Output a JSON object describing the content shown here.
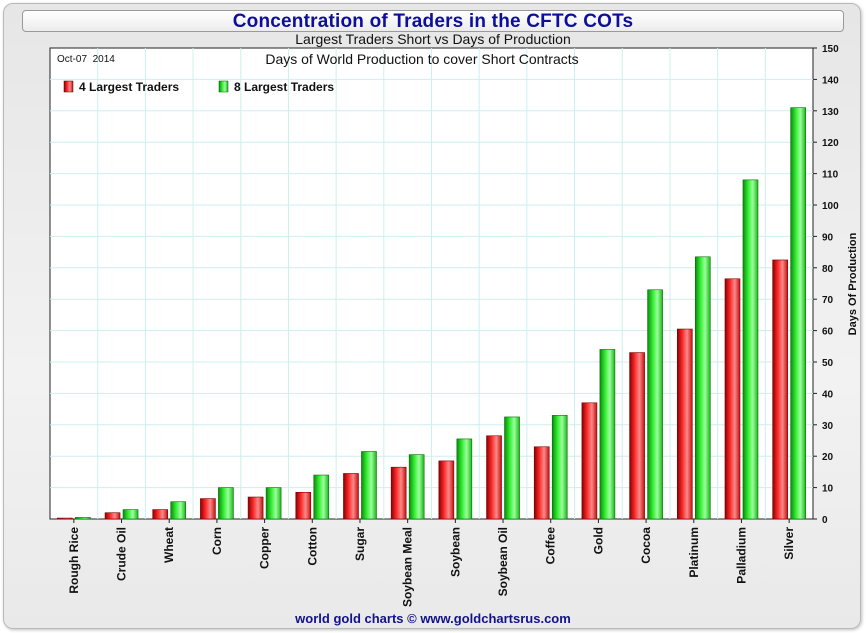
{
  "title": "Concentration of Traders in the CFTC COTs",
  "subtitle": "Largest Traders Short vs Days of Production",
  "footer": "world gold charts © www.goldchartsrus.com",
  "chart_data": {
    "type": "bar",
    "title": "Days of World Production to cover Short Contracts",
    "date_label": "Oct-07  2014",
    "ylabel": "Days Of Production",
    "xlabel": "",
    "ylim": [
      0,
      150
    ],
    "yticks": [
      0,
      10,
      20,
      30,
      40,
      50,
      60,
      70,
      80,
      90,
      100,
      110,
      120,
      130,
      140,
      150
    ],
    "y_axis_side": "right",
    "grid": true,
    "legend_position": "top-left",
    "categories": [
      "Rough Rice",
      "Crude Oil",
      "Wheat",
      "Corn",
      "Copper",
      "Cotton",
      "Sugar",
      "Soybean Meal",
      "Soybean",
      "Soybean Oil",
      "Coffee",
      "Gold",
      "Cocoa",
      "Platinum",
      "Palladium",
      "Silver"
    ],
    "series": [
      {
        "name": "4 Largest Traders",
        "color": "#ee2020",
        "values": [
          0.3,
          2,
          3,
          6.5,
          7,
          8.5,
          14.5,
          16.5,
          18.5,
          26.5,
          23,
          37,
          53,
          60.5,
          76.5,
          82.5
        ]
      },
      {
        "name": "8 Largest Traders",
        "color": "#22dd22",
        "values": [
          0.5,
          3,
          5.5,
          10,
          10,
          14,
          21.5,
          20.5,
          25.5,
          32.5,
          33,
          54,
          73,
          83.5,
          108,
          131
        ]
      }
    ]
  }
}
